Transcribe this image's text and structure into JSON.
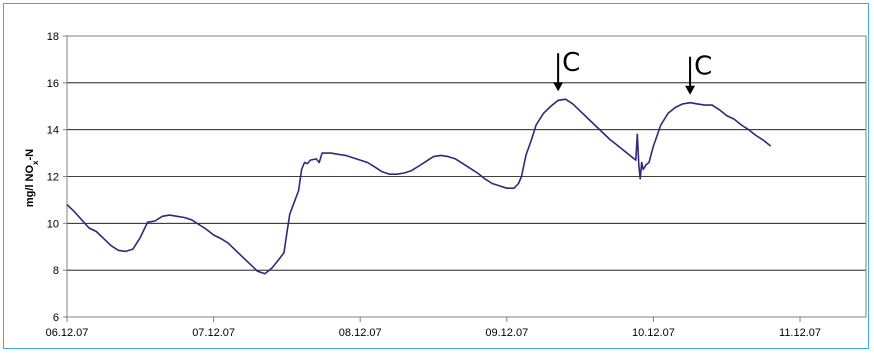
{
  "chart_data": {
    "type": "line",
    "title": "",
    "ylabel_main": "mg/l NO",
    "ylabel_sub": "x",
    "ylabel_tail": "-N",
    "xlabel": "",
    "ylim": [
      6,
      18
    ],
    "yticks": [
      6,
      8,
      10,
      12,
      14,
      16,
      18
    ],
    "xlim": [
      0,
      5.45
    ],
    "xticks": [
      {
        "x": 0,
        "label": "06.12.07"
      },
      {
        "x": 1,
        "label": "07.12.07"
      },
      {
        "x": 2,
        "label": "08.12.07"
      },
      {
        "x": 3,
        "label": "09.12.07"
      },
      {
        "x": 4,
        "label": "10.12.07"
      },
      {
        "x": 5,
        "label": "11.12.07"
      }
    ],
    "grid": "horizontal",
    "line_color": "#2e2a7a",
    "series": [
      {
        "points": [
          [
            0.0,
            10.8
          ],
          [
            0.05,
            10.5
          ],
          [
            0.1,
            10.15
          ],
          [
            0.15,
            9.8
          ],
          [
            0.2,
            9.65
          ],
          [
            0.25,
            9.35
          ],
          [
            0.3,
            9.05
          ],
          [
            0.35,
            8.85
          ],
          [
            0.4,
            8.8
          ],
          [
            0.45,
            8.9
          ],
          [
            0.5,
            9.4
          ],
          [
            0.55,
            10.05
          ],
          [
            0.6,
            10.1
          ],
          [
            0.65,
            10.3
          ],
          [
            0.7,
            10.35
          ],
          [
            0.75,
            10.3
          ],
          [
            0.8,
            10.25
          ],
          [
            0.85,
            10.15
          ],
          [
            0.9,
            9.95
          ],
          [
            0.95,
            9.75
          ],
          [
            1.0,
            9.5
          ],
          [
            1.05,
            9.35
          ],
          [
            1.1,
            9.15
          ],
          [
            1.15,
            8.85
          ],
          [
            1.2,
            8.55
          ],
          [
            1.25,
            8.25
          ],
          [
            1.3,
            7.95
          ],
          [
            1.35,
            7.85
          ],
          [
            1.4,
            8.1
          ],
          [
            1.45,
            8.5
          ],
          [
            1.48,
            8.75
          ],
          [
            1.5,
            9.6
          ],
          [
            1.52,
            10.4
          ],
          [
            1.55,
            10.9
          ],
          [
            1.58,
            11.4
          ],
          [
            1.6,
            12.3
          ],
          [
            1.62,
            12.6
          ],
          [
            1.64,
            12.55
          ],
          [
            1.66,
            12.7
          ],
          [
            1.7,
            12.75
          ],
          [
            1.72,
            12.6
          ],
          [
            1.74,
            13.0
          ],
          [
            1.8,
            13.0
          ],
          [
            1.85,
            12.95
          ],
          [
            1.9,
            12.9
          ],
          [
            1.95,
            12.8
          ],
          [
            2.0,
            12.7
          ],
          [
            2.05,
            12.6
          ],
          [
            2.1,
            12.4
          ],
          [
            2.15,
            12.2
          ],
          [
            2.2,
            12.1
          ],
          [
            2.25,
            12.1
          ],
          [
            2.3,
            12.15
          ],
          [
            2.35,
            12.25
          ],
          [
            2.4,
            12.45
          ],
          [
            2.45,
            12.65
          ],
          [
            2.5,
            12.85
          ],
          [
            2.55,
            12.9
          ],
          [
            2.6,
            12.85
          ],
          [
            2.65,
            12.75
          ],
          [
            2.7,
            12.55
          ],
          [
            2.75,
            12.35
          ],
          [
            2.8,
            12.15
          ],
          [
            2.85,
            11.9
          ],
          [
            2.9,
            11.7
          ],
          [
            2.95,
            11.6
          ],
          [
            3.0,
            11.5
          ],
          [
            3.05,
            11.5
          ],
          [
            3.08,
            11.7
          ],
          [
            3.1,
            12.0
          ],
          [
            3.13,
            12.9
          ],
          [
            3.17,
            13.6
          ],
          [
            3.2,
            14.2
          ],
          [
            3.25,
            14.7
          ],
          [
            3.3,
            15.0
          ],
          [
            3.35,
            15.25
          ],
          [
            3.4,
            15.3
          ],
          [
            3.45,
            15.1
          ],
          [
            3.5,
            14.8
          ],
          [
            3.55,
            14.5
          ],
          [
            3.6,
            14.2
          ],
          [
            3.65,
            13.9
          ],
          [
            3.7,
            13.6
          ],
          [
            3.75,
            13.35
          ],
          [
            3.8,
            13.1
          ],
          [
            3.85,
            12.85
          ],
          [
            3.88,
            12.7
          ],
          [
            3.89,
            13.8
          ],
          [
            3.9,
            12.5
          ],
          [
            3.91,
            11.9
          ],
          [
            3.92,
            12.6
          ],
          [
            3.93,
            12.3
          ],
          [
            3.95,
            12.5
          ],
          [
            3.97,
            12.6
          ],
          [
            4.0,
            13.3
          ],
          [
            4.05,
            14.2
          ],
          [
            4.1,
            14.7
          ],
          [
            4.15,
            14.95
          ],
          [
            4.2,
            15.1
          ],
          [
            4.25,
            15.15
          ],
          [
            4.3,
            15.1
          ],
          [
            4.35,
            15.05
          ],
          [
            4.4,
            15.05
          ],
          [
            4.45,
            14.85
          ],
          [
            4.5,
            14.6
          ],
          [
            4.55,
            14.45
          ],
          [
            4.6,
            14.2
          ],
          [
            4.65,
            14.0
          ],
          [
            4.7,
            13.75
          ],
          [
            4.75,
            13.55
          ],
          [
            4.8,
            13.3
          ]
        ]
      }
    ],
    "annotations": [
      {
        "label": "C",
        "x": 3.35,
        "y": 15.3,
        "arrow": "down"
      },
      {
        "label": "C",
        "x": 4.25,
        "y": 15.15,
        "arrow": "down"
      }
    ]
  }
}
